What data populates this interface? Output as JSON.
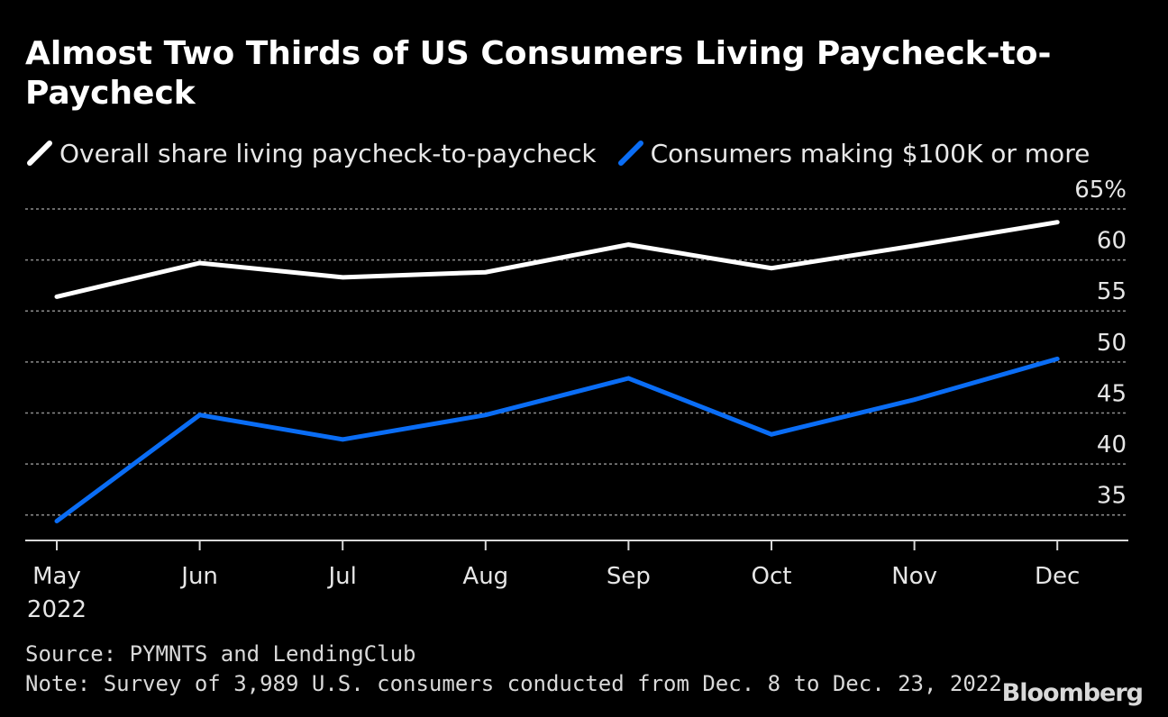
{
  "chart_data": {
    "type": "line",
    "title": "Almost Two Thirds of US Consumers Living Paycheck-to-Paycheck",
    "categories": [
      "May",
      "Jun",
      "Jul",
      "Aug",
      "Sep",
      "Oct",
      "Nov",
      "Dec"
    ],
    "x_sublabel": "2022",
    "series": [
      {
        "name": "Overall share living paycheck-to-paycheck",
        "color": "#ffffff",
        "values": [
          56.4,
          59.7,
          58.3,
          58.8,
          61.5,
          59.2,
          61.4,
          63.7
        ]
      },
      {
        "name": "Consumers making $100K or more",
        "color": "#0a6df5",
        "values": [
          34.4,
          44.8,
          42.4,
          44.8,
          48.4,
          42.9,
          46.3,
          50.3
        ]
      }
    ],
    "yticks": [
      35,
      40,
      45,
      50,
      55,
      60,
      65
    ],
    "ytick_labels": [
      "35",
      "40",
      "45",
      "50",
      "55",
      "60",
      "65%"
    ],
    "ylim": [
      32.5,
      65
    ],
    "xlabel": "",
    "ylabel": "",
    "grid": true,
    "legend_position": "top-left"
  },
  "footer": {
    "source": "Source: PYMNTS and LendingClub",
    "note": "Note: Survey of 3,989 U.S. consumers conducted from Dec. 8 to Dec. 23, 2022"
  },
  "brand": "Bloomberg"
}
